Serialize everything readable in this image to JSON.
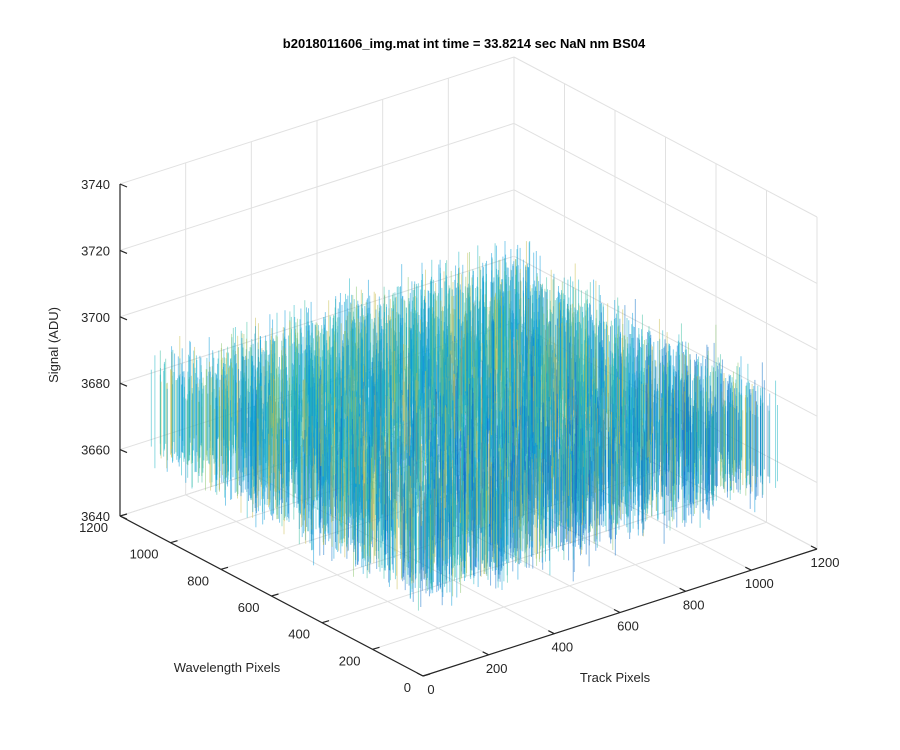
{
  "chart_data": {
    "type": "surface",
    "title": "b2018011606_img.mat int time = 33.8214 sec  NaN nm BS04",
    "xlabel": "Track Pixels",
    "ylabel": "Wavelength Pixels",
    "zlabel": "Signal (ADU)",
    "xlim": [
      0,
      1200
    ],
    "ylim": [
      0,
      1200
    ],
    "zlim": [
      3640,
      3740
    ],
    "xticks": [
      "0",
      "200",
      "400",
      "600",
      "800",
      "1000",
      "1200"
    ],
    "yticks": [
      "0",
      "200",
      "400",
      "600",
      "800",
      "1000",
      "1200"
    ],
    "zticks": [
      "3640",
      "3660",
      "3680",
      "3700",
      "3720",
      "3740"
    ],
    "grid": true,
    "colormap": "parula",
    "colors": [
      "#0d6fc9",
      "#0a9bd8",
      "#19b5c3",
      "#3dbfa0",
      "#86c46b",
      "#c9bd4f"
    ],
    "data_extent": {
      "x": [
        0,
        1100
      ],
      "y": [
        0,
        1100
      ],
      "z": [
        3650,
        3715
      ],
      "mean": 3675
    }
  }
}
